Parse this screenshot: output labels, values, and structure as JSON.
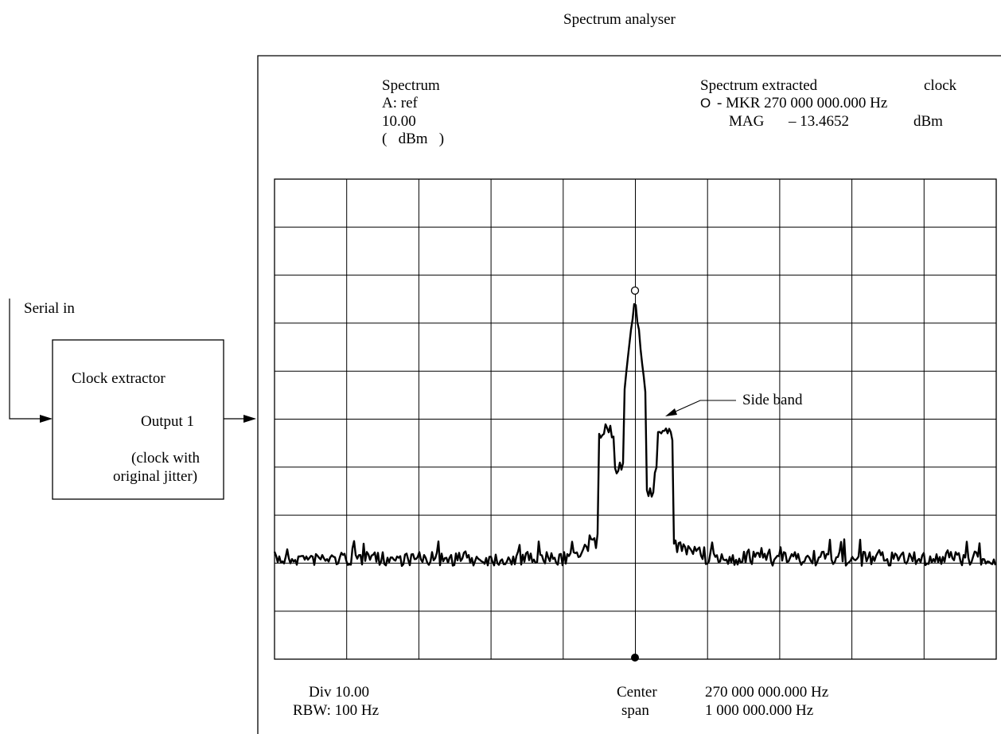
{
  "title": "Spectrum analyser",
  "input": {
    "label": "Serial in"
  },
  "clock_extractor": {
    "name": "Clock extractor",
    "output_label": "Output 1",
    "output_note_line1": "(clock with",
    "output_note_line2": "original jitter)"
  },
  "analyser": {
    "trace_label": "Spectrum",
    "channel": "A: ref",
    "ref_level": "10.00",
    "ref_unit": "(   dBm   )",
    "extracted_label": "Spectrum extracted",
    "extracted_label_2": "clock",
    "marker_symbol": "O",
    "marker_readout": "- MKR 270 000 000.000 Hz",
    "mag_label": "MAG",
    "mag_value": "– 13.4652",
    "mag_unit": "dBm",
    "div": "Div 10.00",
    "rbw": "RBW: 100 Hz",
    "center_label": "Center",
    "center_value": "270 000 000.000 Hz",
    "span_label": "span",
    "span_value": "1 000 000.000 Hz",
    "annotation_sideband": "Side band"
  },
  "plot": {
    "x_divisions": 10,
    "y_divisions": 10,
    "ref_level_dbm": 10,
    "db_per_div": 10,
    "center_hz": 270000000,
    "span_hz": 1000000,
    "marker_mag_dbm": -13.4652,
    "noise_floor_dbm": -68
  }
}
